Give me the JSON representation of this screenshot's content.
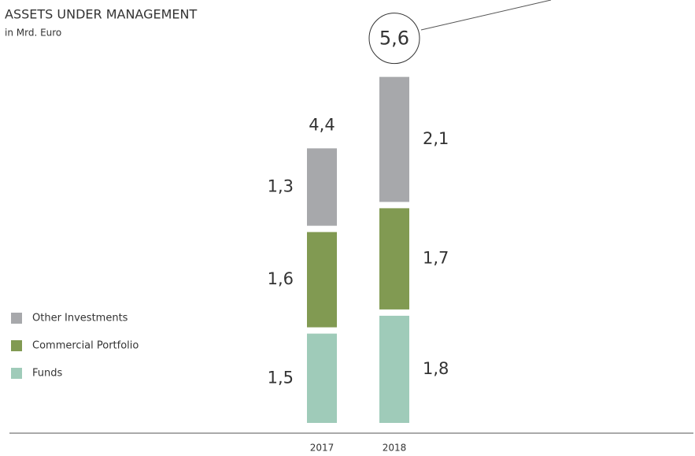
{
  "chart_data": {
    "type": "bar",
    "stacked": true,
    "title": "ASSETS UNDER MANAGEMENT",
    "subtitle": "in Mrd. Euro",
    "categories": [
      "2017",
      "2018"
    ],
    "series": [
      {
        "name": "Other Investments",
        "color": "#a7a8ab",
        "values": [
          1.3,
          2.1
        ],
        "value_labels": [
          "1,3",
          "2,1"
        ]
      },
      {
        "name": "Commercial Portfolio",
        "color": "#819a52",
        "values": [
          1.6,
          1.7
        ],
        "value_labels": [
          "1,6",
          "1,7"
        ]
      },
      {
        "name": "Funds",
        "color": "#9fcbb9",
        "values": [
          1.5,
          1.8
        ],
        "value_labels": [
          "1,5",
          "1,8"
        ]
      }
    ],
    "totals": [
      4.4,
      5.6
    ],
    "total_labels": [
      "4,4",
      "5,6"
    ]
  }
}
